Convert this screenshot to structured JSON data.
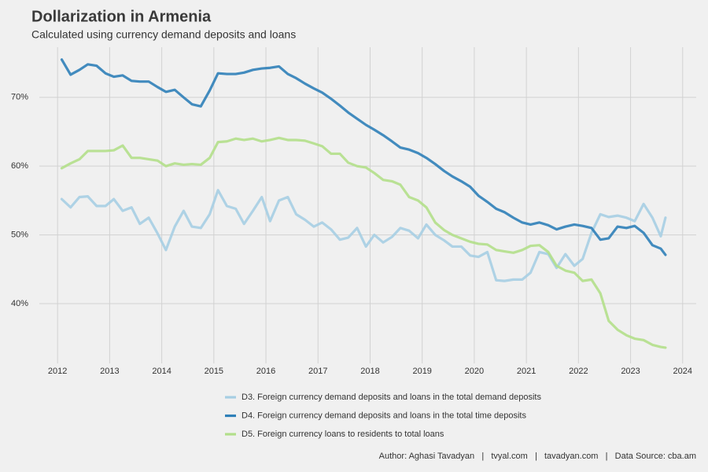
{
  "chart_data": {
    "type": "line",
    "title": "Dollarization in Armenia",
    "subtitle": "Calculated using currency demand deposits and loans",
    "caption": "Author: Aghasi Tavadyan   |   tvyal.com   |   tavadyan.com   |   Data Source: cba.am",
    "x": [
      2012.08,
      2012.25,
      2012.42,
      2012.58,
      2012.75,
      2012.92,
      2013.08,
      2013.25,
      2013.42,
      2013.58,
      2013.75,
      2013.92,
      2014.08,
      2014.25,
      2014.42,
      2014.58,
      2014.75,
      2014.92,
      2015.08,
      2015.25,
      2015.42,
      2015.58,
      2015.75,
      2015.92,
      2016.08,
      2016.25,
      2016.42,
      2016.58,
      2016.75,
      2016.92,
      2017.08,
      2017.25,
      2017.42,
      2017.58,
      2017.75,
      2017.92,
      2018.08,
      2018.25,
      2018.42,
      2018.58,
      2018.75,
      2018.92,
      2019.08,
      2019.25,
      2019.42,
      2019.58,
      2019.75,
      2019.92,
      2020.08,
      2020.25,
      2020.42,
      2020.58,
      2020.75,
      2020.92,
      2021.08,
      2021.25,
      2021.42,
      2021.58,
      2021.75,
      2021.92,
      2022.08,
      2022.25,
      2022.42,
      2022.58,
      2022.75,
      2022.92,
      2023.08,
      2023.25,
      2023.42,
      2023.58,
      2023.67
    ],
    "series": [
      {
        "name": "D3. Foreign currency demand deposits and loans in the total demand deposits",
        "color": "#a6cee3",
        "values": [
          55.2,
          54,
          55.5,
          55.6,
          54.2,
          54.2,
          55.2,
          53.5,
          54,
          51.6,
          52.5,
          50.2,
          47.8,
          51.2,
          53.5,
          51.2,
          51,
          53,
          56.5,
          54.2,
          53.8,
          51.6,
          53.5,
          55.5,
          52,
          55,
          55.5,
          53,
          52.2,
          51.2,
          51.8,
          50.8,
          49.3,
          49.6,
          51,
          48.3,
          50,
          48.9,
          49.7,
          51,
          50.6,
          49.5,
          51.5,
          50,
          49.2,
          48.3,
          48.3,
          47,
          46.8,
          47.5,
          43.4,
          43.3,
          43.5,
          43.5,
          44.5,
          47.5,
          47.2,
          45.2,
          47.2,
          45.5,
          46.5,
          50.3,
          53,
          52.6,
          52.8,
          52.5,
          52,
          54.5,
          52.5,
          49.8,
          52.5
        ]
      },
      {
        "name": "D4. Foreign currency demand deposits and loans in the total time deposits",
        "color": "#2f80b8",
        "values": [
          75.5,
          73.3,
          74,
          74.8,
          74.6,
          73.5,
          73,
          73.2,
          72.4,
          72.3,
          72.3,
          71.5,
          70.8,
          71.1,
          70,
          69,
          68.7,
          71,
          73.5,
          73.4,
          73.4,
          73.6,
          74,
          74.2,
          74.3,
          74.5,
          73.4,
          72.8,
          72,
          71.3,
          70.7,
          69.8,
          68.8,
          67.8,
          66.9,
          66,
          65.3,
          64.5,
          63.6,
          62.7,
          62.4,
          61.9,
          61.2,
          60.3,
          59.3,
          58.5,
          57.8,
          57,
          55.7,
          54.8,
          53.8,
          53.3,
          52.5,
          51.8,
          51.5,
          51.8,
          51.4,
          50.8,
          51.2,
          51.5,
          51.3,
          51,
          49.3,
          49.5,
          51.2,
          51,
          51.3,
          50.3,
          48.5,
          48,
          47.1
        ]
      },
      {
        "name": "D5. Foreign currency loans to residents to total loans",
        "color": "#b2df8a",
        "values": [
          59.7,
          60.4,
          61,
          62.2,
          62.2,
          62.2,
          62.3,
          63,
          61.2,
          61.2,
          61,
          60.8,
          60,
          60.4,
          60.2,
          60.3,
          60.2,
          61.2,
          63.5,
          63.6,
          64,
          63.8,
          64,
          63.6,
          63.8,
          64.1,
          63.8,
          63.8,
          63.7,
          63.3,
          62.9,
          61.8,
          61.8,
          60.5,
          60,
          59.8,
          59,
          58,
          57.8,
          57.3,
          55.5,
          55,
          54,
          51.8,
          50.7,
          50,
          49.5,
          49,
          48.7,
          48.6,
          47.8,
          47.6,
          47.4,
          47.8,
          48.4,
          48.5,
          47.5,
          45.5,
          44.8,
          44.5,
          43.3,
          43.5,
          41.5,
          37.5,
          36.2,
          35.4,
          34.9,
          34.7,
          34,
          33.7,
          33.6
        ]
      }
    ],
    "xlim": [
      2011.65,
      2024.26
    ],
    "xticks": [
      2012,
      2013,
      2014,
      2015,
      2016,
      2017,
      2018,
      2019,
      2020,
      2021,
      2022,
      2023,
      2024
    ],
    "ylim": [
      31.3,
      77.3
    ],
    "yticks": [
      {
        "value": 40,
        "label": "40%"
      },
      {
        "value": 50,
        "label": "50%"
      },
      {
        "value": 60,
        "label": "60%"
      },
      {
        "value": 70,
        "label": "70%"
      }
    ],
    "grid": true,
    "legend": "bottom"
  }
}
